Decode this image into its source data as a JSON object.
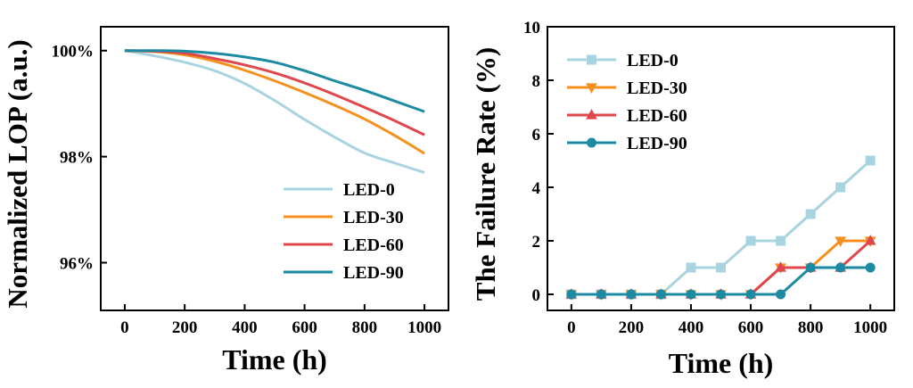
{
  "chart_data": [
    {
      "type": "line",
      "xlabel": "Time (h)",
      "ylabel": "Normalized LOP (a.u.)",
      "xlim": [
        -80,
        1080
      ],
      "ylim": [
        95.1,
        100.45
      ],
      "xticks": [
        0,
        200,
        400,
        600,
        800,
        1000
      ],
      "yticks": [
        96,
        98,
        100
      ],
      "ytick_labels": [
        "96%",
        "98%",
        "100%"
      ],
      "legend_position": "bottom-right",
      "grid": false,
      "series": [
        {
          "name": "LED-0",
          "color": "#a8d3e0",
          "x": [
            0,
            100,
            200,
            300,
            400,
            500,
            600,
            700,
            800,
            900,
            1000
          ],
          "y": [
            100,
            99.9,
            99.78,
            99.62,
            99.38,
            99.06,
            98.7,
            98.37,
            98.07,
            97.88,
            97.7
          ]
        },
        {
          "name": "LED-30",
          "color": "#f4901e",
          "x": [
            0,
            100,
            200,
            300,
            400,
            500,
            600,
            700,
            800,
            900,
            1000
          ],
          "y": [
            100,
            99.98,
            99.92,
            99.8,
            99.63,
            99.43,
            99.21,
            98.97,
            98.71,
            98.4,
            98.06
          ]
        },
        {
          "name": "LED-60",
          "color": "#e0474c",
          "x": [
            0,
            100,
            200,
            300,
            400,
            500,
            600,
            700,
            800,
            900,
            1000
          ],
          "y": [
            100,
            99.99,
            99.95,
            99.85,
            99.73,
            99.58,
            99.39,
            99.17,
            98.93,
            98.68,
            98.41
          ]
        },
        {
          "name": "LED-90",
          "color": "#1d8aa3",
          "x": [
            0,
            100,
            200,
            300,
            400,
            500,
            600,
            700,
            800,
            900,
            1000
          ],
          "y": [
            100,
            100,
            99.99,
            99.95,
            99.88,
            99.78,
            99.62,
            99.43,
            99.25,
            99.05,
            98.85
          ]
        }
      ]
    },
    {
      "type": "line",
      "xlabel": "Time (h)",
      "ylabel": "The Failure Rate (%)",
      "xlim": [
        -80,
        1080
      ],
      "ylim": [
        -0.6,
        10
      ],
      "xticks": [
        0,
        200,
        400,
        600,
        800,
        1000
      ],
      "yticks": [
        0,
        2,
        4,
        6,
        8,
        10
      ],
      "legend_position": "top-left",
      "grid": false,
      "series": [
        {
          "name": "LED-0",
          "color": "#a8d3e0",
          "marker": "square",
          "x": [
            0,
            100,
            200,
            300,
            400,
            500,
            600,
            700,
            800,
            900,
            1000
          ],
          "y": [
            0,
            0,
            0,
            0,
            1,
            1,
            2,
            2,
            3,
            4,
            5
          ]
        },
        {
          "name": "LED-30",
          "color": "#f4901e",
          "marker": "triangle-down",
          "x": [
            0,
            100,
            200,
            300,
            400,
            500,
            600,
            700,
            800,
            900,
            1000
          ],
          "y": [
            0,
            0,
            0,
            0,
            0,
            0,
            0,
            1,
            1,
            2,
            2
          ]
        },
        {
          "name": "LED-60",
          "color": "#e0474c",
          "marker": "triangle-up",
          "x": [
            0,
            100,
            200,
            300,
            400,
            500,
            600,
            700,
            800,
            900,
            1000
          ],
          "y": [
            0,
            0,
            0,
            0,
            0,
            0,
            0,
            1,
            1,
            1,
            2
          ]
        },
        {
          "name": "LED-90",
          "color": "#1d8aa3",
          "marker": "circle",
          "x": [
            0,
            100,
            200,
            300,
            400,
            500,
            600,
            700,
            800,
            900,
            1000
          ],
          "y": [
            0,
            0,
            0,
            0,
            0,
            0,
            0,
            0,
            1,
            1,
            1
          ]
        }
      ]
    }
  ]
}
